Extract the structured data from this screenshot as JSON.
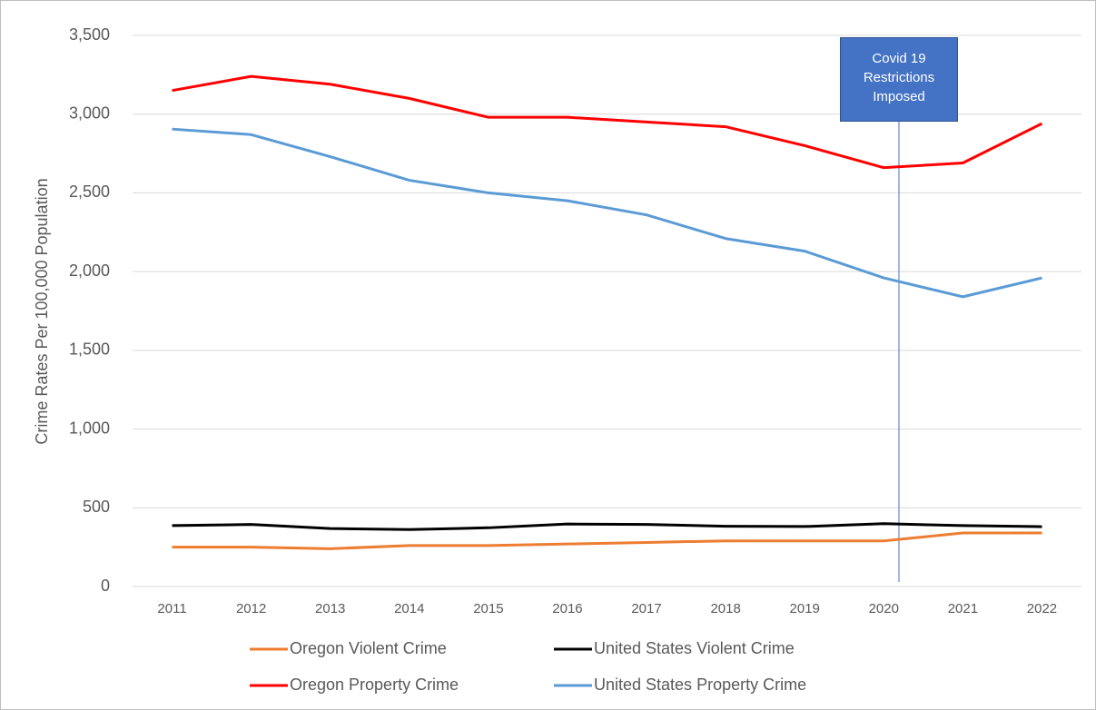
{
  "chart_data": {
    "type": "line",
    "y_label": "Crime Rates Per 100,000 Population",
    "categories": [
      "2011",
      "2012",
      "2013",
      "2014",
      "2015",
      "2016",
      "2017",
      "2018",
      "2019",
      "2020",
      "2021",
      "2022"
    ],
    "series": [
      {
        "name": "Oregon Violent Crime",
        "color": "#ed7d31",
        "values": [
          250,
          250,
          240,
          260,
          260,
          270,
          280,
          290,
          290,
          290,
          340,
          340
        ]
      },
      {
        "name": "United States Violent Crime",
        "color": "#000000",
        "values": [
          387,
          394,
          368,
          362,
          373,
          397,
          394,
          383,
          381,
          399,
          387,
          380
        ]
      },
      {
        "name": "Oregon Property Crime",
        "color": "#ff0000",
        "values": [
          3150,
          3240,
          3190,
          3100,
          2980,
          2980,
          2950,
          2920,
          2800,
          2660,
          2690,
          2940
        ]
      },
      {
        "name": "United States Property Crime",
        "color": "#5b9bd5",
        "values": [
          2905,
          2870,
          2730,
          2580,
          2500,
          2450,
          2360,
          2210,
          2130,
          1960,
          1840,
          1960
        ]
      }
    ],
    "ylim": [
      0,
      3500
    ],
    "yticks": [
      0,
      {
        "value": 500,
        "label": "500"
      },
      {
        "value": 1000,
        "label": "1,000"
      },
      {
        "value": 1500,
        "label": "1,500"
      },
      {
        "value": 2000,
        "label": "2,000"
      },
      {
        "value": 2500,
        "label": "2,500"
      },
      {
        "value": 3000,
        "label": "3,000"
      },
      {
        "value": 3500,
        "label": "3,500"
      }
    ],
    "grid": true,
    "annotation": "Covid 19 Restrictions Imposed"
  }
}
